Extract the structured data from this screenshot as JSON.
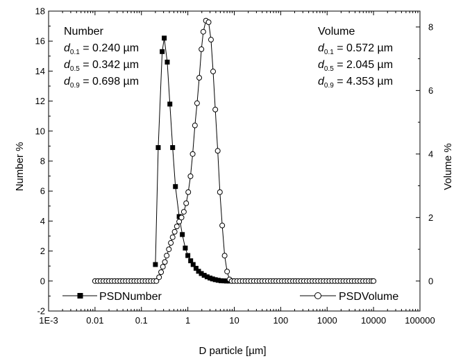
{
  "chart_data": {
    "type": "scatter",
    "x_scale": "log",
    "grid": false,
    "xlabel": "D particle [µm]",
    "ylabel_left": "Number  %",
    "ylabel_right": "Volume %",
    "xlim": [
      0.001,
      100000
    ],
    "ylim_left": [
      -2,
      18
    ],
    "ylim_right": [
      -0.944,
      8.5
    ],
    "x_ticks": [
      0.001,
      0.01,
      0.1,
      1,
      10,
      100,
      1000,
      10000,
      100000
    ],
    "x_tick_labels": [
      "1E-3",
      "0.01",
      "0.1",
      "1",
      "10",
      "100",
      "1000",
      "10000",
      "100000"
    ],
    "y_left_ticks": [
      -2,
      0,
      2,
      4,
      6,
      8,
      10,
      12,
      14,
      16,
      18
    ],
    "y_left_tick_labels": [
      "-2",
      "0",
      "2",
      "4",
      "6",
      "8",
      "10",
      "12",
      "14",
      "16",
      "18"
    ],
    "y_right_ticks": [
      0,
      2,
      4,
      6,
      8
    ],
    "y_right_tick_labels": [
      "0",
      "2",
      "4",
      "6",
      "8"
    ],
    "legend": {
      "placement": "bottom",
      "entries": [
        "PSDNumber",
        "PSDVolume"
      ]
    },
    "annotations": {
      "number": {
        "title": "Number",
        "lines": [
          {
            "sub": "0.1",
            "value": " = 0.240 µm"
          },
          {
            "sub": "0.5",
            "value": " = 0.342 µm"
          },
          {
            "sub": "0.9",
            "value": " = 0.698 µm"
          }
        ]
      },
      "volume": {
        "title": "Volume",
        "lines": [
          {
            "sub": "0.1",
            "value": " = 0.572 µm"
          },
          {
            "sub": "0.5",
            "value": " = 2.045 µm"
          },
          {
            "sub": "0.9",
            "value": " = 4.353 µm"
          }
        ]
      },
      "d_letter": "d"
    },
    "series": [
      {
        "name": "PSDNumber",
        "axis": "left",
        "marker": "filled-square",
        "points": [
          [
            0.2,
            1.1
          ],
          [
            0.23,
            8.9
          ],
          [
            0.28,
            15.3
          ],
          [
            0.31,
            16.2
          ],
          [
            0.36,
            14.6
          ],
          [
            0.41,
            11.8
          ],
          [
            0.47,
            8.9
          ],
          [
            0.54,
            6.3
          ],
          [
            0.65,
            4.3
          ],
          [
            0.76,
            3.1
          ],
          [
            0.88,
            2.2
          ],
          [
            1.0,
            1.7
          ],
          [
            1.15,
            1.35
          ],
          [
            1.3,
            1.1
          ],
          [
            1.5,
            0.85
          ],
          [
            1.7,
            0.65
          ],
          [
            1.95,
            0.5
          ],
          [
            2.25,
            0.38
          ],
          [
            2.6,
            0.28
          ],
          [
            3.0,
            0.2
          ],
          [
            3.4,
            0.14
          ],
          [
            3.9,
            0.09
          ],
          [
            4.5,
            0.05
          ],
          [
            5.2,
            0.02
          ],
          [
            6.0,
            0.01
          ],
          [
            6.8,
            0.0
          ],
          [
            7.8,
            0.0
          ],
          [
            9.0,
            0.0
          ]
        ]
      },
      {
        "name": "PSDVolume",
        "axis": "right",
        "marker": "open-circle",
        "points": [
          [
            0.01,
            0.0
          ],
          [
            0.0115,
            0.0
          ],
          [
            0.0132,
            0.0
          ],
          [
            0.0152,
            0.0
          ],
          [
            0.0175,
            0.0
          ],
          [
            0.02,
            0.0
          ],
          [
            0.023,
            0.0
          ],
          [
            0.0265,
            0.0
          ],
          [
            0.0305,
            0.0
          ],
          [
            0.035,
            0.0
          ],
          [
            0.04,
            0.0
          ],
          [
            0.046,
            0.0
          ],
          [
            0.053,
            0.0
          ],
          [
            0.061,
            0.0
          ],
          [
            0.07,
            0.0
          ],
          [
            0.08,
            0.0
          ],
          [
            0.092,
            0.0
          ],
          [
            0.106,
            0.0
          ],
          [
            0.122,
            0.0
          ],
          [
            0.14,
            0.0
          ],
          [
            0.16,
            0.0
          ],
          [
            0.184,
            0.0
          ],
          [
            0.21,
            0.0
          ],
          [
            0.24,
            0.12
          ],
          [
            0.265,
            0.28
          ],
          [
            0.29,
            0.45
          ],
          [
            0.32,
            0.6
          ],
          [
            0.35,
            0.8
          ],
          [
            0.39,
            1.0
          ],
          [
            0.43,
            1.2
          ],
          [
            0.47,
            1.38
          ],
          [
            0.52,
            1.55
          ],
          [
            0.58,
            1.72
          ],
          [
            0.65,
            1.87
          ],
          [
            0.73,
            2.0
          ],
          [
            0.82,
            2.18
          ],
          [
            0.92,
            2.45
          ],
          [
            1.02,
            2.8
          ],
          [
            1.14,
            3.3
          ],
          [
            1.27,
            4.0
          ],
          [
            1.42,
            4.9
          ],
          [
            1.58,
            5.6
          ],
          [
            1.76,
            6.4
          ],
          [
            1.96,
            7.3
          ],
          [
            2.15,
            7.85
          ],
          [
            2.45,
            8.2
          ],
          [
            2.8,
            8.15
          ],
          [
            3.15,
            7.6
          ],
          [
            3.5,
            6.6
          ],
          [
            3.9,
            5.4
          ],
          [
            4.4,
            4.1
          ],
          [
            4.9,
            2.8
          ],
          [
            5.5,
            1.75
          ],
          [
            6.2,
            0.8
          ],
          [
            7.0,
            0.3
          ],
          [
            7.9,
            0.05
          ],
          [
            8.8,
            0.0
          ],
          [
            10,
            0.0
          ],
          [
            11.5,
            0.0
          ],
          [
            13.2,
            0.0
          ],
          [
            15.2,
            0.0
          ],
          [
            17.5,
            0.0
          ],
          [
            20,
            0.0
          ],
          [
            23,
            0.0
          ],
          [
            26.5,
            0.0
          ],
          [
            30.5,
            0.0
          ],
          [
            35,
            0.0
          ],
          [
            40,
            0.0
          ],
          [
            46,
            0.0
          ],
          [
            53,
            0.0
          ],
          [
            61,
            0.0
          ],
          [
            70,
            0.0
          ],
          [
            80,
            0.0
          ],
          [
            92,
            0.0
          ],
          [
            106,
            0.0
          ],
          [
            122,
            0.0
          ],
          [
            140,
            0.0
          ],
          [
            160,
            0.0
          ],
          [
            184,
            0.0
          ],
          [
            210,
            0.0
          ],
          [
            240,
            0.0
          ],
          [
            276,
            0.0
          ],
          [
            317,
            0.0
          ],
          [
            365,
            0.0
          ],
          [
            420,
            0.0
          ],
          [
            483,
            0.0
          ],
          [
            555,
            0.0
          ],
          [
            638,
            0.0
          ],
          [
            734,
            0.0
          ],
          [
            844,
            0.0
          ],
          [
            970,
            0.0
          ],
          [
            1115,
            0.0
          ],
          [
            1282,
            0.0
          ],
          [
            1474,
            0.0
          ],
          [
            1695,
            0.0
          ],
          [
            1950,
            0.0
          ],
          [
            2240,
            0.0
          ],
          [
            2580,
            0.0
          ],
          [
            2966,
            0.0
          ],
          [
            3410,
            0.0
          ],
          [
            3920,
            0.0
          ],
          [
            4508,
            0.0
          ],
          [
            5184,
            0.0
          ],
          [
            5961,
            0.0
          ],
          [
            6855,
            0.0
          ],
          [
            7883,
            0.0
          ],
          [
            9065,
            0.0
          ],
          [
            10000,
            0.0
          ]
        ]
      }
    ]
  }
}
